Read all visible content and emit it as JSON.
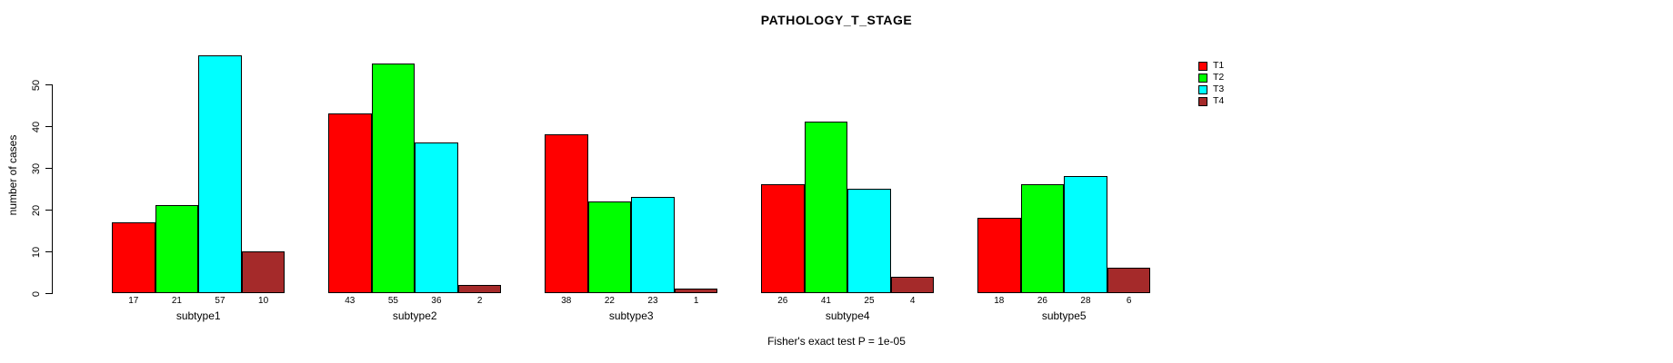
{
  "title": "PATHOLOGY_T_STAGE",
  "footer": "Fisher's exact test P = 1e-05",
  "chart_data": {
    "type": "bar",
    "title": "PATHOLOGY_T_STAGE",
    "ylabel": "number of cases",
    "xlabel": "",
    "categories": [
      "subtype1",
      "subtype2",
      "subtype3",
      "subtype4",
      "subtype5"
    ],
    "series": [
      {
        "name": "T1",
        "color": "#FF0000",
        "values": [
          17,
          43,
          38,
          26,
          18
        ]
      },
      {
        "name": "T2",
        "color": "#00FF00",
        "values": [
          21,
          55,
          22,
          41,
          26
        ]
      },
      {
        "name": "T3",
        "color": "#00FFFF",
        "values": [
          57,
          36,
          23,
          25,
          28
        ]
      },
      {
        "name": "T4",
        "color": "#A52A2A",
        "values": [
          10,
          2,
          1,
          4,
          6
        ]
      }
    ],
    "bar_value_labels": [
      [
        17,
        21,
        57,
        10
      ],
      [
        43,
        55,
        36,
        2
      ],
      [
        38,
        22,
        23,
        1
      ],
      [
        26,
        41,
        25,
        4
      ],
      [
        18,
        26,
        28,
        6
      ]
    ],
    "y_ticks": [
      0,
      10,
      20,
      30,
      40,
      50
    ],
    "ylim": [
      0,
      57
    ],
    "grid": false,
    "legend_position": "top-right",
    "annotation": "Fisher's exact test P = 1e-05"
  }
}
